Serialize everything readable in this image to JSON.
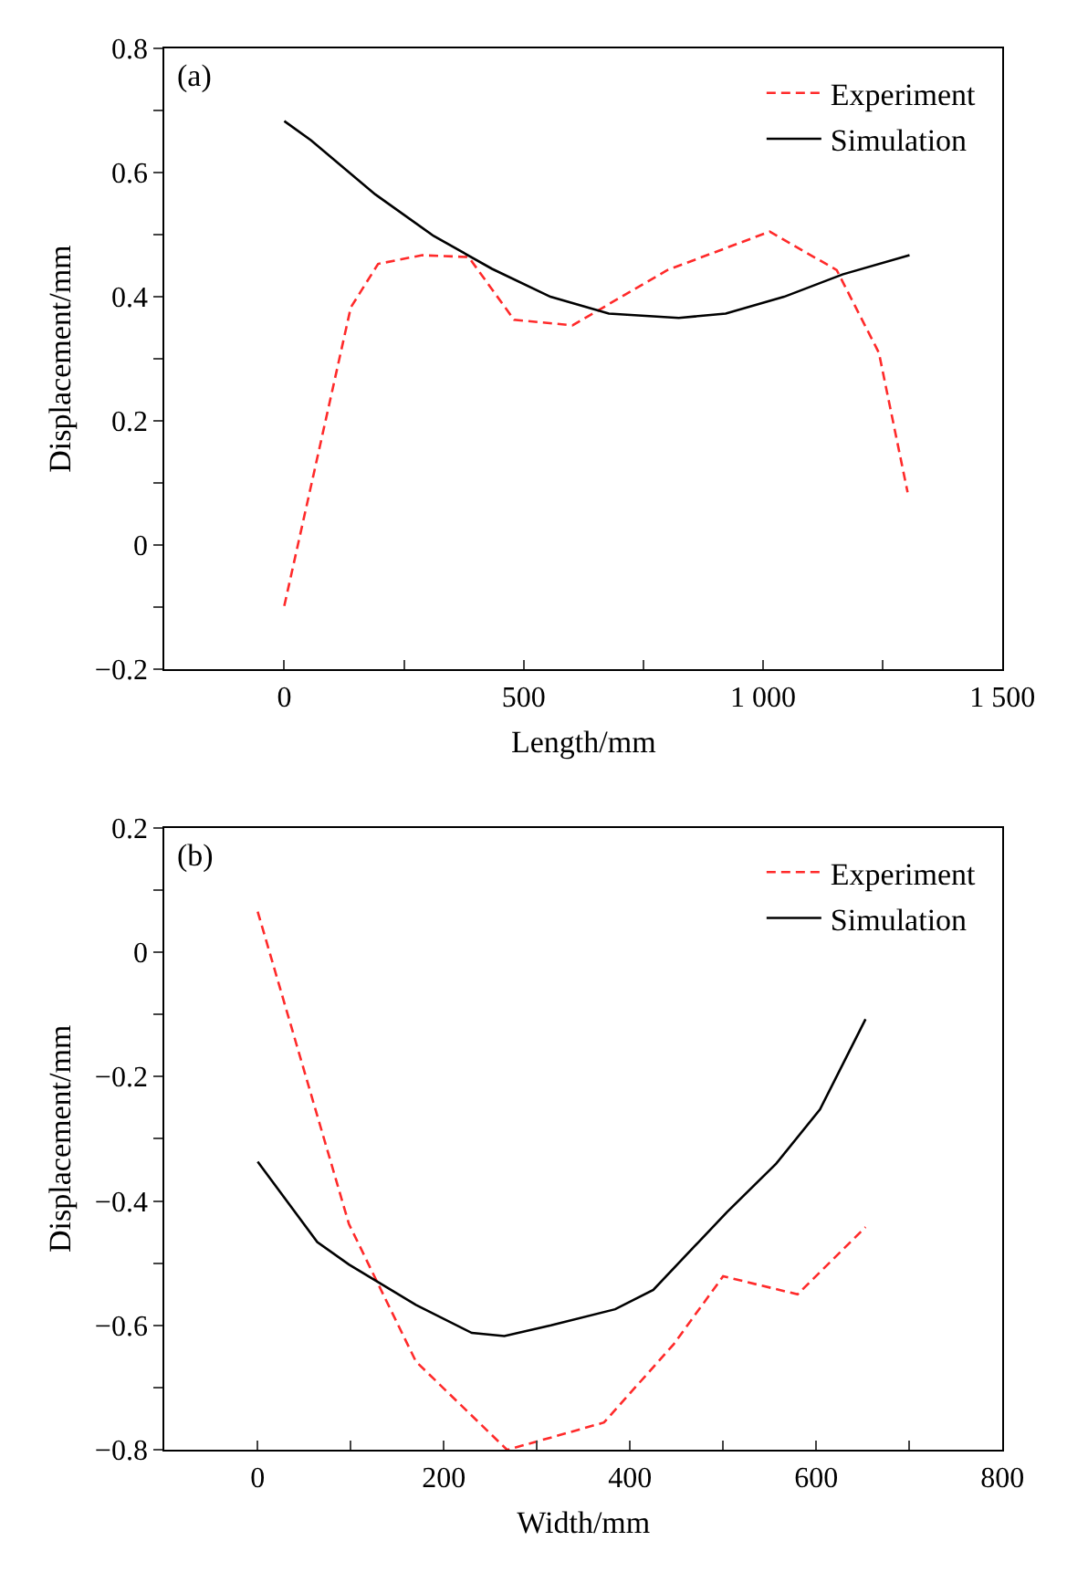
{
  "chart_data": [
    {
      "type": "line",
      "xlabel": "Length/mm",
      "ylabel": "Displacement/mm",
      "annotations": [
        "(a)"
      ],
      "legend": "top right",
      "xlim": [
        -250,
        1500
      ],
      "xticks": [
        0,
        {
          "value": 250,
          "label": null
        },
        500,
        {
          "value": 750,
          "label": null
        },
        {
          "value": 1000,
          "label": "1 000"
        },
        {
          "value": 1250,
          "label": null
        },
        {
          "value": 1500,
          "label": "1 500"
        }
      ],
      "ylim": [
        -0.2,
        0.8
      ],
      "yticks": [
        {
          "value": -0.2,
          "label": "−0.2"
        },
        {
          "value": -0.1,
          "label": null
        },
        0,
        {
          "value": 0.1,
          "label": null
        },
        0.2,
        {
          "value": 0.3,
          "label": null
        },
        0.4,
        {
          "value": 0.5,
          "label": null
        },
        0.6,
        {
          "value": 0.7,
          "label": null
        },
        0.8
      ],
      "series": [
        {
          "name": "Experiment",
          "color": "#ff2a2a",
          "line_style": "dashed",
          "x": [
            0,
            139,
            196,
            288,
            385,
            480,
            602,
            800,
            1014,
            1154,
            1242,
            1302
          ],
          "values": [
            -0.098,
            0.383,
            0.453,
            0.467,
            0.464,
            0.363,
            0.354,
            0.443,
            0.505,
            0.443,
            0.31,
            0.085
          ]
        },
        {
          "name": "Simulation",
          "color": "#000000",
          "line_style": "solid",
          "x": [
            0,
            56,
            190,
            312,
            434,
            556,
            678,
            824,
            922,
            1044,
            1166,
            1306
          ],
          "values": [
            0.683,
            0.652,
            0.565,
            0.498,
            0.445,
            0.4,
            0.373,
            0.366,
            0.373,
            0.4,
            0.436,
            0.467
          ]
        }
      ]
    },
    {
      "type": "line",
      "xlabel": "Width/mm",
      "ylabel": "Displacement/mm",
      "annotations": [
        "(b)"
      ],
      "legend": "top right",
      "xlim": [
        -100,
        800
      ],
      "xticks": [
        0,
        {
          "value": 100,
          "label": null
        },
        200,
        {
          "value": 300,
          "label": null
        },
        400,
        {
          "value": 500,
          "label": null
        },
        600,
        {
          "value": 700,
          "label": null
        },
        800
      ],
      "ylim": [
        -0.8,
        0.2
      ],
      "yticks": [
        {
          "value": -0.8,
          "label": "−0.8"
        },
        {
          "value": -0.7,
          "label": null
        },
        {
          "value": -0.6,
          "label": "−0.6"
        },
        {
          "value": -0.5,
          "label": null
        },
        {
          "value": -0.4,
          "label": "−0.4"
        },
        {
          "value": -0.3,
          "label": null
        },
        {
          "value": -0.2,
          "label": "−0.2"
        },
        {
          "value": -0.1,
          "label": null
        },
        0,
        {
          "value": 0.1,
          "label": null
        },
        0.2
      ],
      "series": [
        {
          "name": "Experiment",
          "color": "#ff2a2a",
          "line_style": "dashed",
          "x": [
            0,
            98,
            170,
            268,
            372,
            447,
            500,
            580,
            653
          ],
          "values": [
            0.065,
            -0.437,
            -0.658,
            -0.8,
            -0.756,
            -0.63,
            -0.521,
            -0.55,
            -0.442
          ]
        },
        {
          "name": "Simulation",
          "color": "#000000",
          "line_style": "solid",
          "x": [
            0,
            64,
            98,
            170,
            230,
            265,
            315,
            384,
            425,
            504,
            557,
            604,
            653
          ],
          "values": [
            -0.337,
            -0.466,
            -0.502,
            -0.567,
            -0.612,
            -0.617,
            -0.6,
            -0.574,
            -0.543,
            -0.418,
            -0.34,
            -0.253,
            -0.108
          ]
        }
      ]
    }
  ]
}
